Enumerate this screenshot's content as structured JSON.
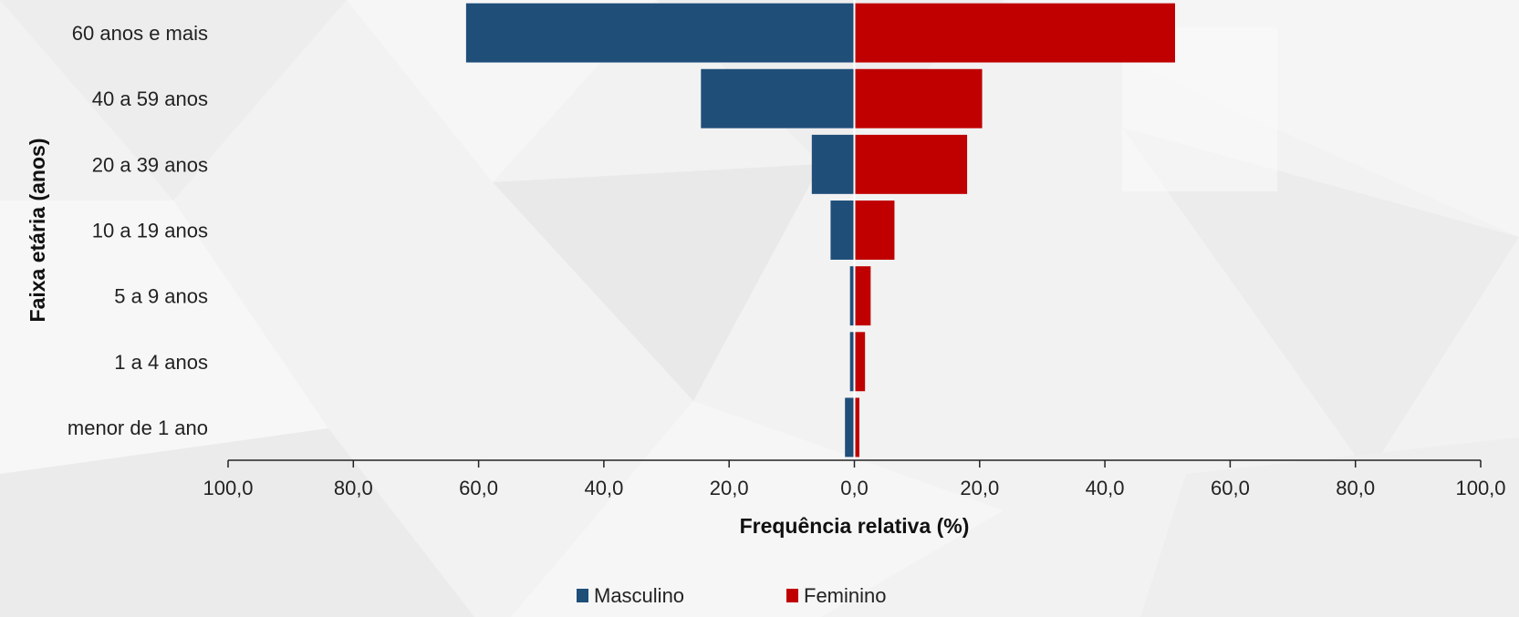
{
  "chart_data": {
    "type": "bar",
    "orientation": "horizontal-pyramid",
    "categories": [
      "menor de 1 ano",
      "1 a 4 anos",
      "5 a 9 anos",
      "10 a 19 anos",
      "20 a 39 anos",
      "40 a 59 anos",
      "60 anos e mais"
    ],
    "series": [
      {
        "name": "Masculino",
        "color": "#1f4e79",
        "values": [
          1.5,
          0.7,
          0.7,
          3.8,
          6.8,
          24.5,
          62.0
        ]
      },
      {
        "name": "Feminino",
        "color": "#c00000",
        "values": [
          0.8,
          1.7,
          2.6,
          6.4,
          18.0,
          20.4,
          51.2
        ]
      }
    ],
    "xlabel": "Frequência relativa (%)",
    "ylabel": "Faixa etária (anos)",
    "xlim": [
      -100,
      100
    ],
    "xticks": [
      -100,
      -80,
      -60,
      -40,
      -20,
      0,
      20,
      40,
      60,
      80,
      100
    ],
    "tick_labels": [
      "100,0",
      "80,0",
      "60,0",
      "40,0",
      "20,0",
      "0,0",
      "20,0",
      "40,0",
      "60,0",
      "80,0",
      "100,0"
    ],
    "grid": false,
    "legend_position": "bottom"
  }
}
